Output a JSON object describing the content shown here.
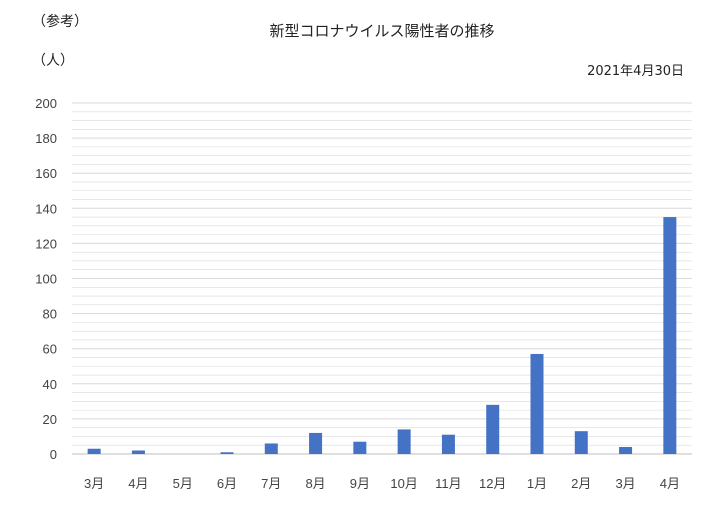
{
  "header": {
    "note": "（参考）",
    "unit": "（人）",
    "title": "新型コロナウイルス陽性者の推移",
    "date": "2021年4月30日"
  },
  "chart_data": {
    "type": "bar",
    "title": "新型コロナウイルス陽性者の推移",
    "xlabel": "",
    "ylabel": "（人）",
    "categories": [
      "3月",
      "4月",
      "5月",
      "6月",
      "7月",
      "8月",
      "9月",
      "10月",
      "11月",
      "12月",
      "1月",
      "2月",
      "3月",
      "4月"
    ],
    "values": [
      3,
      2,
      0,
      1,
      6,
      12,
      7,
      14,
      11,
      28,
      57,
      13,
      4,
      135
    ],
    "ylim": [
      0,
      200
    ],
    "yticks": [
      0,
      20,
      40,
      60,
      80,
      100,
      120,
      140,
      160,
      180,
      200
    ],
    "grid": true,
    "legend": "none",
    "bar_color": "#4472C4",
    "grid_color": "#D9D9D9"
  }
}
